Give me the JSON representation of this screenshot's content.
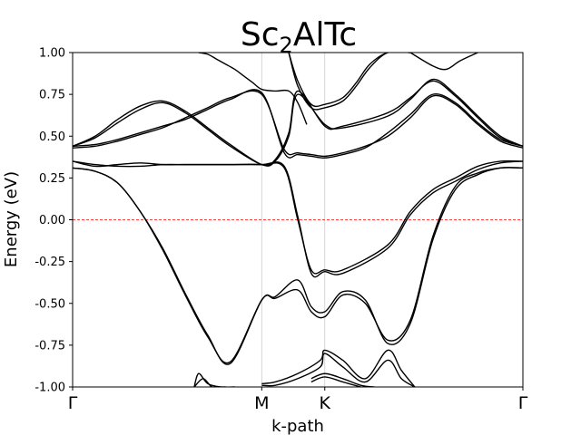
{
  "chart_data": {
    "type": "line",
    "title": "Sc2AlTc",
    "title_parts": {
      "base1": "Sc",
      "sub": "2",
      "base2": "AlTc"
    },
    "xlabel": "k-path",
    "ylabel": "Energy (eV)",
    "ylim": [
      -1.0,
      1.0
    ],
    "xlim": [
      0.0,
      1.0
    ],
    "high_symmetry_points": [
      {
        "label": "Γ",
        "x": 0.0
      },
      {
        "label": "M",
        "x": 0.42
      },
      {
        "label": "K",
        "x": 0.56
      },
      {
        "label": "Γ",
        "x": 1.0
      }
    ],
    "y_ticks": [
      "1.00",
      "0.75",
      "0.50",
      "0.25",
      "0.00",
      "-0.25",
      "-0.50",
      "-0.75",
      "-1.00"
    ],
    "y_tick_values": [
      1.0,
      0.75,
      0.5,
      0.25,
      0.0,
      -0.25,
      -0.5,
      -0.75,
      -1.0
    ],
    "fermi_level": {
      "value": 0.0,
      "color": "#ff0000",
      "style": "dashed"
    },
    "line_color": "#000000",
    "vertical_grid_color": "#cccccc",
    "series": [
      {
        "x": [
          0,
          0.05,
          0.1,
          0.15,
          0.2,
          0.25,
          0.3,
          0.35,
          0.42,
          0.45,
          0.5,
          0.53,
          0.56,
          0.6,
          0.65,
          0.7,
          0.75,
          0.8,
          0.85,
          0.9,
          0.95,
          1.0
        ],
        "y": [
          0.31,
          0.29,
          0.22,
          0.05,
          -0.18,
          -0.45,
          -0.7,
          -0.85,
          -0.48,
          -0.47,
          -0.42,
          -0.55,
          -0.58,
          -0.45,
          -0.5,
          -0.72,
          -0.6,
          -0.1,
          0.2,
          0.28,
          0.31,
          0.31
        ]
      },
      {
        "x": [
          0,
          0.05,
          0.1,
          0.15,
          0.2,
          0.25,
          0.3,
          0.35,
          0.42,
          0.45,
          0.5,
          0.53,
          0.56,
          0.6,
          0.65,
          0.7,
          0.75,
          0.8,
          0.85,
          0.9,
          0.95,
          1.0
        ],
        "y": [
          0.31,
          0.29,
          0.22,
          0.05,
          -0.17,
          -0.44,
          -0.69,
          -0.86,
          -0.48,
          -0.46,
          -0.36,
          -0.52,
          -0.55,
          -0.43,
          -0.48,
          -0.74,
          -0.62,
          -0.12,
          0.18,
          0.27,
          0.31,
          0.31
        ]
      },
      {
        "x": [
          0,
          0.05,
          0.1,
          0.15,
          0.2,
          0.25,
          0.3,
          0.35,
          0.42,
          0.47,
          0.5,
          0.53,
          0.56,
          0.6,
          0.7,
          0.75,
          0.8,
          0.85,
          0.9,
          0.95,
          1.0
        ],
        "y": [
          0.35,
          0.33,
          0.32,
          0.32,
          0.33,
          0.33,
          0.33,
          0.33,
          0.33,
          0.31,
          0.0,
          -0.3,
          -0.3,
          -0.3,
          -0.15,
          0.05,
          0.18,
          0.25,
          0.32,
          0.35,
          0.35
        ]
      },
      {
        "x": [
          0,
          0.05,
          0.1,
          0.15,
          0.2,
          0.25,
          0.3,
          0.35,
          0.42,
          0.47,
          0.5,
          0.53,
          0.56,
          0.6,
          0.7,
          0.75,
          0.8,
          0.85,
          0.9,
          0.95,
          1.0
        ],
        "y": [
          0.35,
          0.32,
          0.33,
          0.34,
          0.33,
          0.33,
          0.33,
          0.33,
          0.33,
          0.32,
          0.02,
          -0.32,
          -0.31,
          -0.32,
          -0.17,
          0.03,
          0.16,
          0.23,
          0.3,
          0.34,
          0.35
        ]
      },
      {
        "x": [
          0,
          0.05,
          0.1,
          0.15,
          0.2,
          0.25,
          0.3,
          0.35,
          0.42,
          0.45,
          0.48,
          0.5,
          0.56,
          0.6,
          0.7,
          0.75,
          0.8,
          0.85,
          0.9,
          0.95,
          1.0
        ],
        "y": [
          0.44,
          0.5,
          0.6,
          0.68,
          0.71,
          0.65,
          0.55,
          0.45,
          0.33,
          0.35,
          0.5,
          0.75,
          0.57,
          0.55,
          0.62,
          0.72,
          0.84,
          0.75,
          0.62,
          0.5,
          0.44
        ]
      },
      {
        "x": [
          0,
          0.05,
          0.1,
          0.15,
          0.2,
          0.25,
          0.3,
          0.35,
          0.42,
          0.45,
          0.48,
          0.5,
          0.56,
          0.6,
          0.7,
          0.75,
          0.8,
          0.85,
          0.9,
          0.95,
          1.0
        ],
        "y": [
          0.44,
          0.49,
          0.58,
          0.66,
          0.7,
          0.64,
          0.54,
          0.44,
          0.33,
          0.36,
          0.52,
          0.77,
          0.56,
          0.56,
          0.64,
          0.73,
          0.83,
          0.74,
          0.61,
          0.49,
          0.44
        ]
      },
      {
        "x": [
          0,
          0.05,
          0.1,
          0.15,
          0.2,
          0.25,
          0.3,
          0.35,
          0.42,
          0.47,
          0.5,
          0.53,
          0.56,
          0.6,
          0.65,
          0.7,
          0.75,
          0.8,
          0.85,
          0.9,
          0.95,
          1.0
        ],
        "y": [
          0.44,
          0.45,
          0.48,
          0.52,
          0.56,
          0.6,
          0.66,
          0.72,
          0.76,
          0.4,
          0.39,
          0.38,
          0.37,
          0.39,
          0.43,
          0.52,
          0.63,
          0.75,
          0.7,
          0.58,
          0.48,
          0.44
        ]
      },
      {
        "x": [
          0,
          0.05,
          0.1,
          0.15,
          0.2,
          0.25,
          0.3,
          0.35,
          0.42,
          0.47,
          0.5,
          0.53,
          0.56,
          0.6,
          0.65,
          0.7,
          0.75,
          0.8,
          0.85,
          0.9,
          0.95,
          1.0
        ],
        "y": [
          0.43,
          0.44,
          0.47,
          0.51,
          0.55,
          0.61,
          0.67,
          0.73,
          0.75,
          0.42,
          0.4,
          0.39,
          0.38,
          0.4,
          0.44,
          0.5,
          0.61,
          0.74,
          0.69,
          0.57,
          0.47,
          0.43
        ]
      },
      {
        "x": [
          0.28,
          0.3,
          0.32,
          0.34,
          0.36,
          0.38,
          0.4,
          0.42,
          0.45,
          0.48,
          0.5,
          0.52
        ],
        "y": [
          1.0,
          0.99,
          0.96,
          0.93,
          0.9,
          0.86,
          0.82,
          0.78,
          0.77,
          0.77,
          0.7,
          0.57
        ]
      },
      {
        "x": [
          0.48,
          0.5,
          0.53,
          0.56,
          0.6,
          0.63,
          0.66,
          0.7,
          0.75
        ],
        "y": [
          1.0,
          0.83,
          0.69,
          0.69,
          0.73,
          0.82,
          0.93,
          1.0,
          1.0
        ]
      },
      {
        "x": [
          0.48,
          0.5,
          0.53,
          0.56,
          0.6,
          0.63,
          0.66,
          0.7,
          0.75
        ],
        "y": [
          1.0,
          0.8,
          0.67,
          0.67,
          0.71,
          0.8,
          0.91,
          1.0,
          1.0
        ]
      },
      {
        "x": [
          0.75,
          0.8,
          0.83,
          0.86,
          0.9
        ],
        "y": [
          1.0,
          0.92,
          0.9,
          0.95,
          1.0
        ]
      },
      {
        "x": [
          0.27,
          0.28,
          0.3,
          0.33,
          0.36
        ],
        "y": [
          -1.0,
          -0.92,
          -0.98,
          -1.0,
          -1.0
        ]
      },
      {
        "x": [
          0.27,
          0.29,
          0.31,
          0.34
        ],
        "y": [
          -1.0,
          -0.95,
          -1.0,
          -1.0
        ]
      },
      {
        "x": [
          0.42,
          0.45,
          0.5,
          0.55,
          0.56,
          0.6,
          0.65,
          0.7,
          0.73,
          0.76
        ],
        "y": [
          -0.98,
          -0.97,
          -0.92,
          -0.84,
          -0.78,
          -0.84,
          -0.95,
          -0.78,
          -0.9,
          -1.0
        ]
      },
      {
        "x": [
          0.42,
          0.45,
          0.5,
          0.55,
          0.56,
          0.6,
          0.65,
          0.7,
          0.73,
          0.76
        ],
        "y": [
          -0.99,
          -0.99,
          -0.95,
          -0.88,
          -0.8,
          -0.88,
          -0.97,
          -0.84,
          -0.95,
          -1.0
        ]
      },
      {
        "x": [
          0.53,
          0.56,
          0.6,
          0.64,
          0.67
        ],
        "y": [
          -0.95,
          -0.92,
          -0.95,
          -0.99,
          -1.0
        ]
      },
      {
        "x": [
          0.53,
          0.56,
          0.6,
          0.64
        ],
        "y": [
          -0.97,
          -0.94,
          -0.97,
          -1.0
        ]
      }
    ]
  }
}
